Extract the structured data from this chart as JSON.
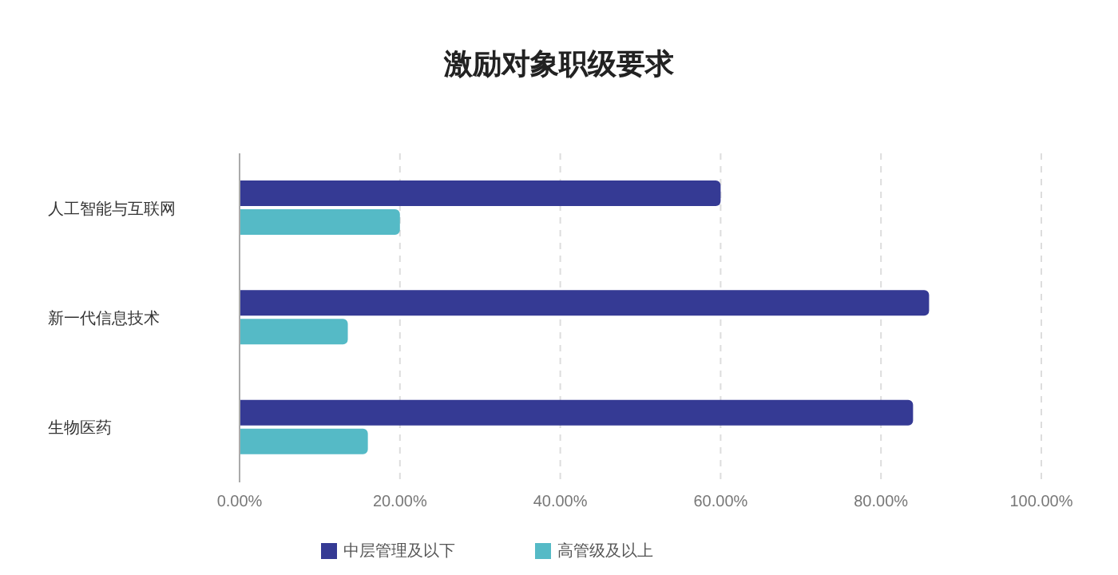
{
  "chart_data": {
    "type": "bar",
    "orientation": "horizontal",
    "title": "激励对象职级要求",
    "categories": [
      "人工智能与互联网",
      "新一代信息技术",
      "生物医药"
    ],
    "series": [
      {
        "name": "中层管理及以下",
        "color": "#353a94",
        "values": [
          60,
          86,
          84
        ]
      },
      {
        "name": "高管级及以上",
        "color": "#55bac6",
        "values": [
          20,
          13.5,
          16
        ]
      }
    ],
    "xlim": [
      0,
      100
    ],
    "xticks": [
      {
        "value": 0,
        "label": "0.00%"
      },
      {
        "value": 20,
        "label": "20.00%"
      },
      {
        "value": 40,
        "label": "40.00%"
      },
      {
        "value": 60,
        "label": "60.00%"
      },
      {
        "value": 80,
        "label": "80.00%"
      },
      {
        "value": 100,
        "label": "100.00%"
      }
    ],
    "grid": "x",
    "legend": "bottom"
  }
}
